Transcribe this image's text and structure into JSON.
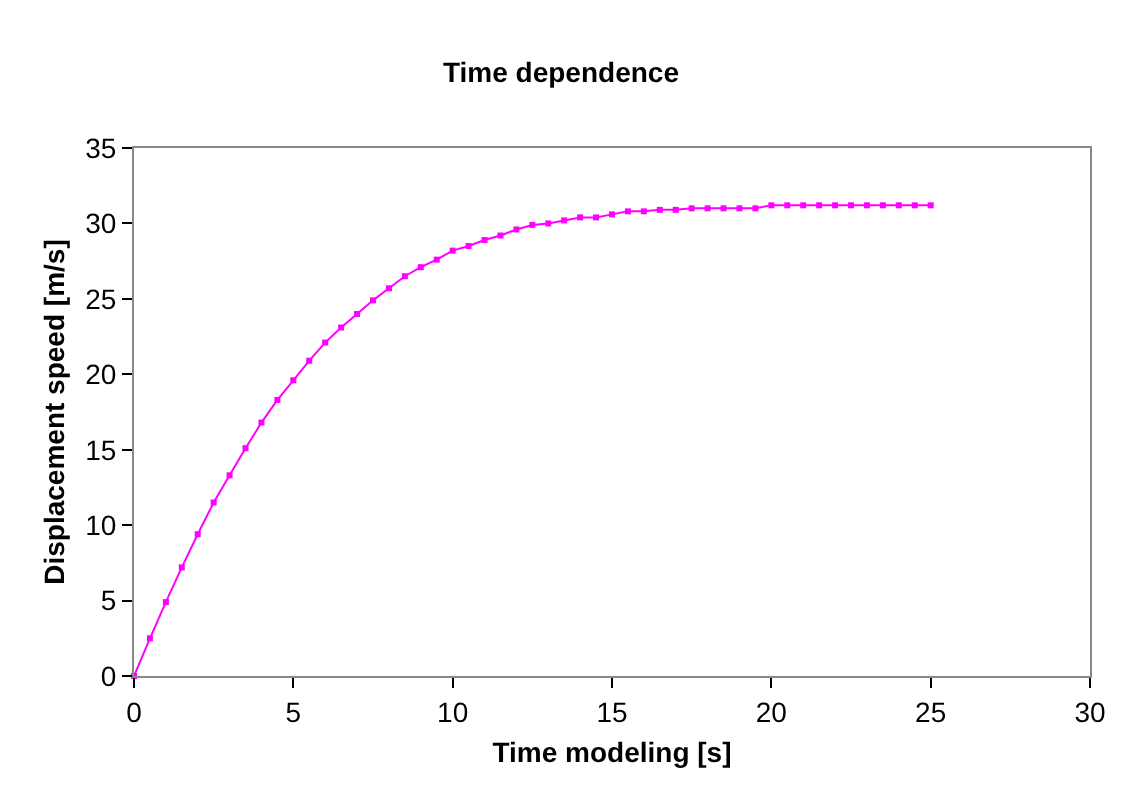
{
  "chart_data": {
    "type": "line",
    "title": "Time dependence",
    "xlabel": "Time modeling [s]",
    "ylabel": "Displacement speed [m/s]",
    "x": [
      0,
      0.5,
      1,
      1.5,
      2,
      2.5,
      3,
      3.5,
      4,
      4.5,
      5,
      5.5,
      6,
      6.5,
      7,
      7.5,
      8,
      8.5,
      9,
      9.5,
      10,
      10.5,
      11,
      11.5,
      12,
      12.5,
      13,
      13.5,
      14,
      14.5,
      15,
      15.5,
      16,
      16.5,
      17,
      17.5,
      18,
      18.5,
      19,
      19.5,
      20,
      20.5,
      21,
      21.5,
      22,
      22.5,
      23,
      23.5,
      24,
      24.5,
      25
    ],
    "series": [
      {
        "color": "#ff00ff",
        "values": [
          0,
          2.5,
          4.9,
          7.2,
          9.4,
          11.5,
          13.3,
          15.1,
          16.8,
          18.3,
          19.6,
          20.9,
          22.1,
          23.1,
          24.0,
          24.9,
          25.7,
          26.5,
          27.1,
          27.6,
          28.2,
          28.5,
          28.9,
          29.2,
          29.6,
          29.9,
          30.0,
          30.2,
          30.4,
          30.4,
          30.6,
          30.8,
          30.8,
          30.9,
          30.9,
          31.0,
          31.0,
          31.0,
          31.0,
          31.0,
          31.2,
          31.2,
          31.2,
          31.2,
          31.2,
          31.2,
          31.2,
          31.2,
          31.2,
          31.2,
          31.2
        ]
      }
    ],
    "xlim": [
      0,
      30
    ],
    "xticks": [
      0,
      5,
      10,
      15,
      20,
      25,
      30
    ],
    "ylim": [
      0,
      35
    ],
    "yticks": [
      0,
      5,
      10,
      15,
      20,
      25,
      30,
      35
    ],
    "grid": false,
    "marker": "square",
    "line_style": "solid"
  }
}
